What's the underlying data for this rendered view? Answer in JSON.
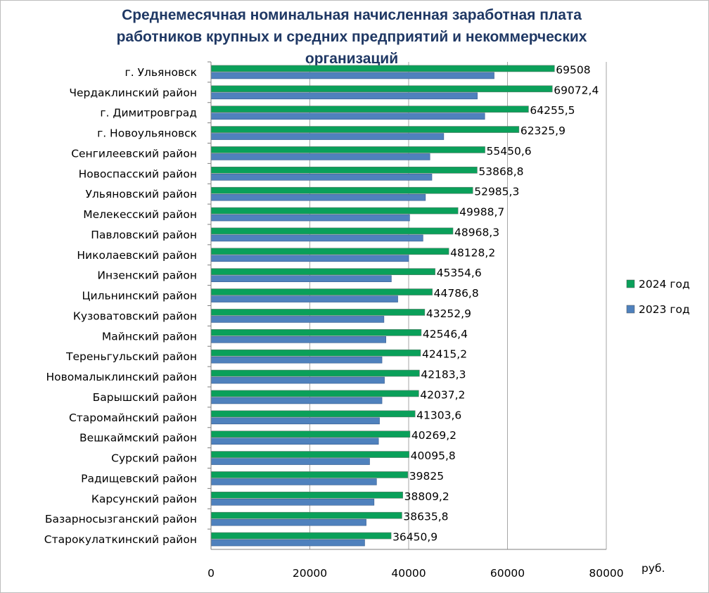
{
  "chart_data": {
    "type": "bar",
    "orientation": "horizontal",
    "title": "Среднемесячная номинальная начисленная заработная плата работников крупных и средних предприятий и некоммерческих организаций",
    "xlabel": "руб.",
    "xlim": [
      0,
      80000
    ],
    "xticks": [
      "0",
      "20000",
      "40000",
      "60000",
      "80000"
    ],
    "legend_position": "right",
    "grid": true,
    "categories": [
      "г. Ульяновск",
      "Чердаклинский район",
      "г. Димитровград",
      "г. Новоульяновск",
      "Сенгилеевский район",
      "Новоспасский район",
      "Ульяновский район",
      "Мелекесский район",
      "Павловский район",
      "Николаевский район",
      "Инзенский район",
      "Цильнинский район",
      "Кузоватовский район",
      "Майнский район",
      "Тереньгульский район",
      "Новомалыклинский район",
      "Барышский район",
      "Старомайнский район",
      "Вешкаймский район",
      "Сурский район",
      "Радищевский район",
      "Карсунский район",
      "Базарносызганский район",
      "Старокулаткинский район"
    ],
    "series": [
      {
        "name": "2024 год",
        "color": "#0aa05a",
        "values": [
          69508,
          69072.4,
          64255.5,
          62325.9,
          55450.6,
          53868.8,
          52985.3,
          49988.7,
          48968.3,
          48128.2,
          45354.6,
          44786.8,
          43252.9,
          42546.4,
          42415.2,
          42183.3,
          42037.2,
          41303.6,
          40269.2,
          40095.8,
          39825,
          38809.2,
          38635.8,
          36450.9
        ],
        "labels": [
          "69508",
          "69072,4",
          "64255,5",
          "62325,9",
          "55450,6",
          "53868,8",
          "52985,3",
          "49988,7",
          "48968,3",
          "48128,2",
          "45354,6",
          "44786,8",
          "43252,9",
          "42546,4",
          "42415,2",
          "42183,3",
          "42037,2",
          "41303,6",
          "40269,2",
          "40095,8",
          "39825",
          "38809,2",
          "38635,8",
          "36450,9"
        ]
      },
      {
        "name": "2023 год",
        "color": "#4f81bd",
        "values": [
          57300,
          53900,
          55400,
          47100,
          44300,
          44700,
          43400,
          40200,
          42900,
          40000,
          36500,
          37800,
          35000,
          35400,
          34600,
          35100,
          34600,
          34100,
          33900,
          32100,
          33500,
          33000,
          31400,
          31100
        ]
      }
    ]
  }
}
